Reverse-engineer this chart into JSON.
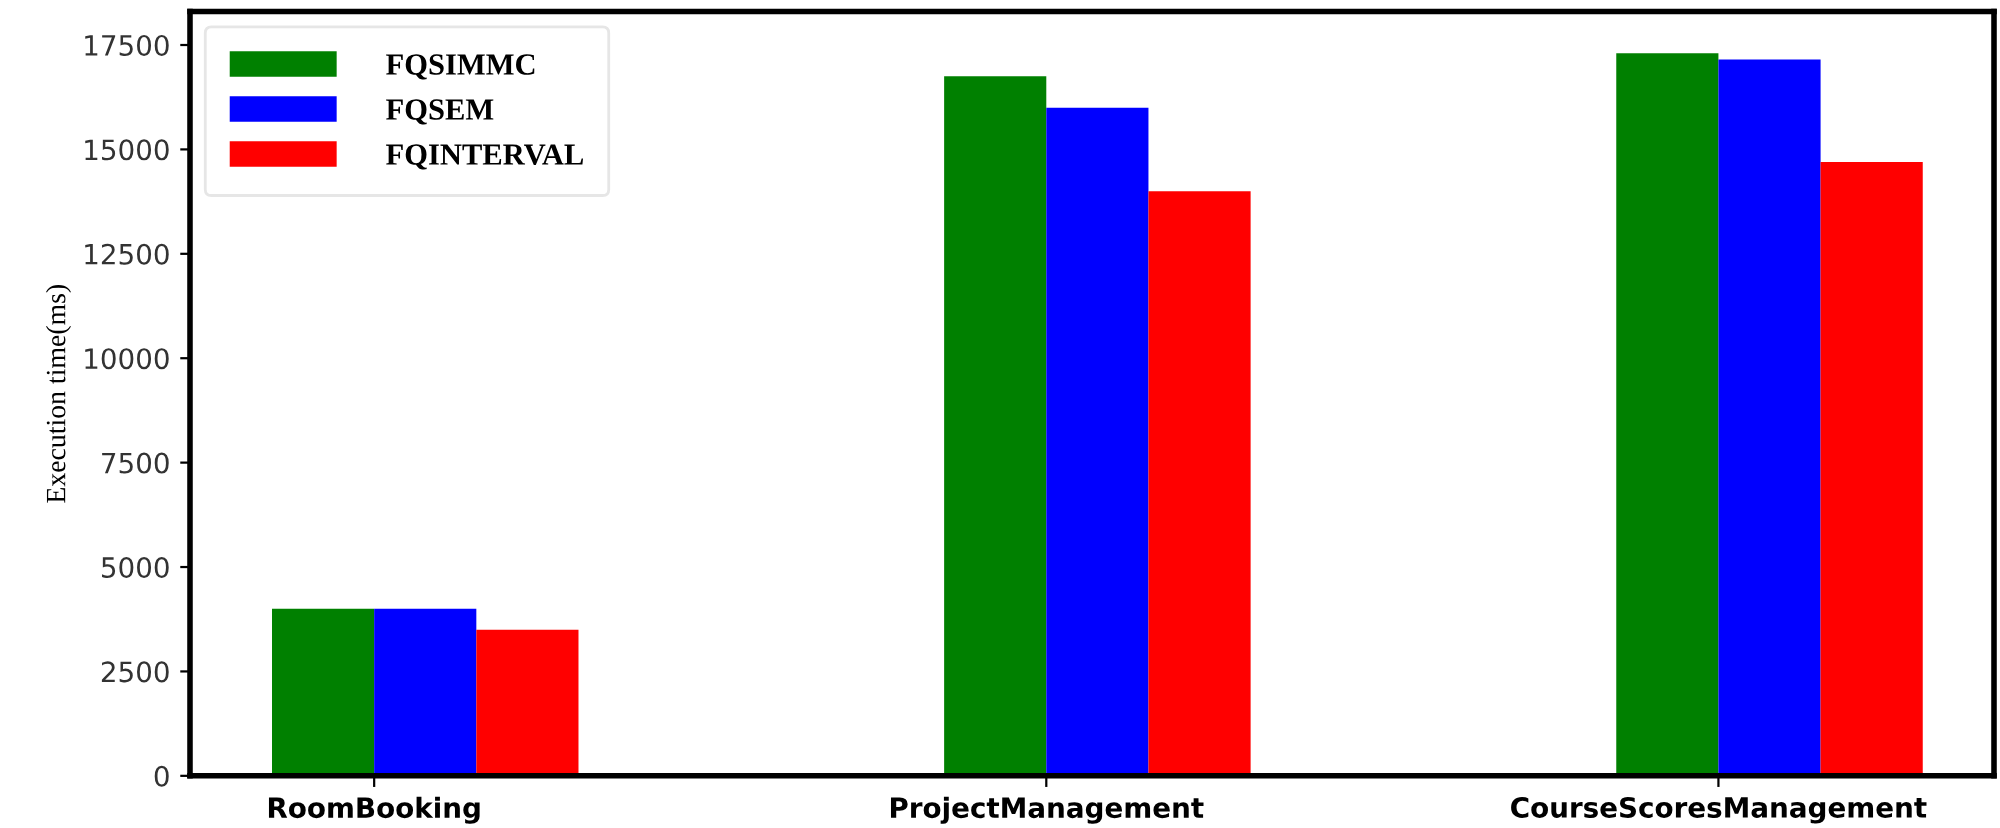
{
  "chart_data": {
    "type": "bar",
    "ylabel": "Execution time(ms)",
    "categories": [
      "RoomBooking",
      "ProjectManagement",
      "CourseScoresManagement"
    ],
    "series": [
      {
        "name": "FQSIMMC",
        "color": "#008000",
        "values": [
          4000,
          16750,
          17300
        ]
      },
      {
        "name": "FQSEM",
        "color": "#0000ff",
        "values": [
          4000,
          16000,
          17150
        ]
      },
      {
        "name": "FQINTERVAL",
        "color": "#ff0000",
        "values": [
          3500,
          14000,
          14700
        ]
      }
    ],
    "ylim": [
      0,
      18300
    ],
    "yticks": [
      0,
      2500,
      5000,
      7500,
      10000,
      12500,
      15000,
      17500
    ],
    "legend": "top left",
    "grid": false
  }
}
